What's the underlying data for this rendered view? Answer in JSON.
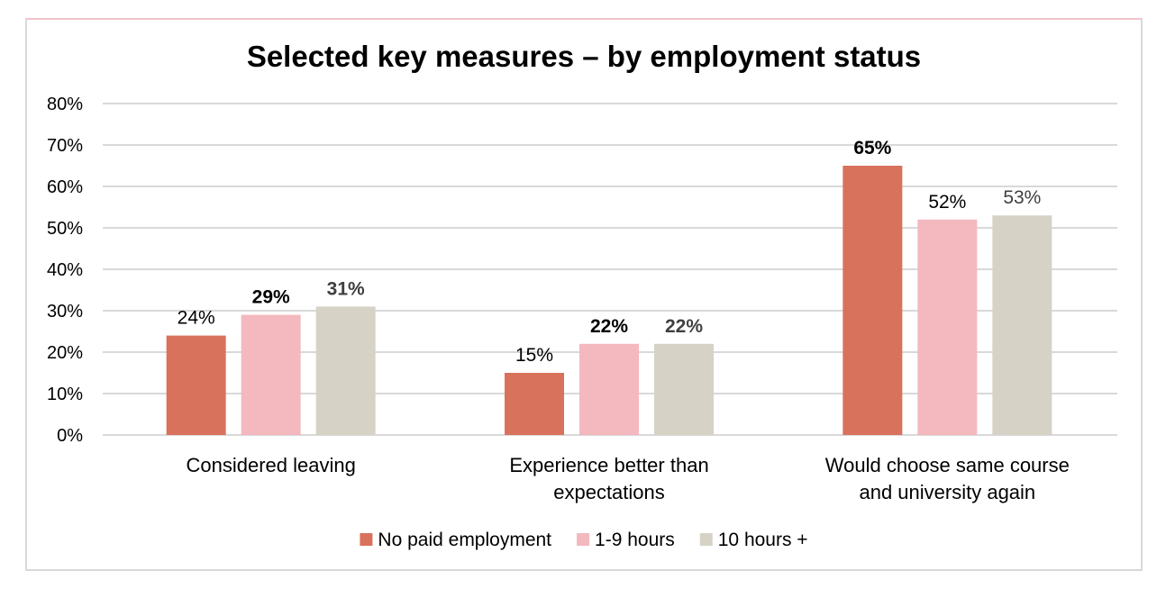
{
  "chart_data": {
    "type": "bar",
    "title": "Selected key measures – by employment status",
    "xlabel": "",
    "ylabel": "",
    "ylim": [
      0,
      0.8
    ],
    "yticks": [
      "0%",
      "10%",
      "20%",
      "30%",
      "40%",
      "50%",
      "60%",
      "70%",
      "80%"
    ],
    "grid": true,
    "legend_position": "bottom",
    "categories": [
      [
        "Considered leaving"
      ],
      [
        "Experience better than",
        "expectations"
      ],
      [
        "Would choose same course",
        "and university again"
      ]
    ],
    "series": [
      {
        "name": "No paid employment",
        "color": "#d9725c",
        "values": [
          0.24,
          0.15,
          0.65
        ],
        "labels": [
          "24%",
          "15%",
          "65%"
        ],
        "label_bold": [
          false,
          false,
          true
        ],
        "label_color": [
          "#000000",
          "#000000",
          "#000000"
        ]
      },
      {
        "name": "1-9 hours",
        "color": "#f4b8bf",
        "values": [
          0.29,
          0.22,
          0.52
        ],
        "labels": [
          "29%",
          "22%",
          "52%"
        ],
        "label_bold": [
          true,
          true,
          false
        ],
        "label_color": [
          "#000000",
          "#000000",
          "#000000"
        ]
      },
      {
        "name": "10 hours +",
        "color": "#d6d2c6",
        "values": [
          0.31,
          0.22,
          0.53
        ],
        "labels": [
          "31%",
          "22%",
          "53%"
        ],
        "label_bold": [
          true,
          true,
          false
        ],
        "label_color": [
          "#404040",
          "#404040",
          "#404040"
        ]
      }
    ]
  }
}
